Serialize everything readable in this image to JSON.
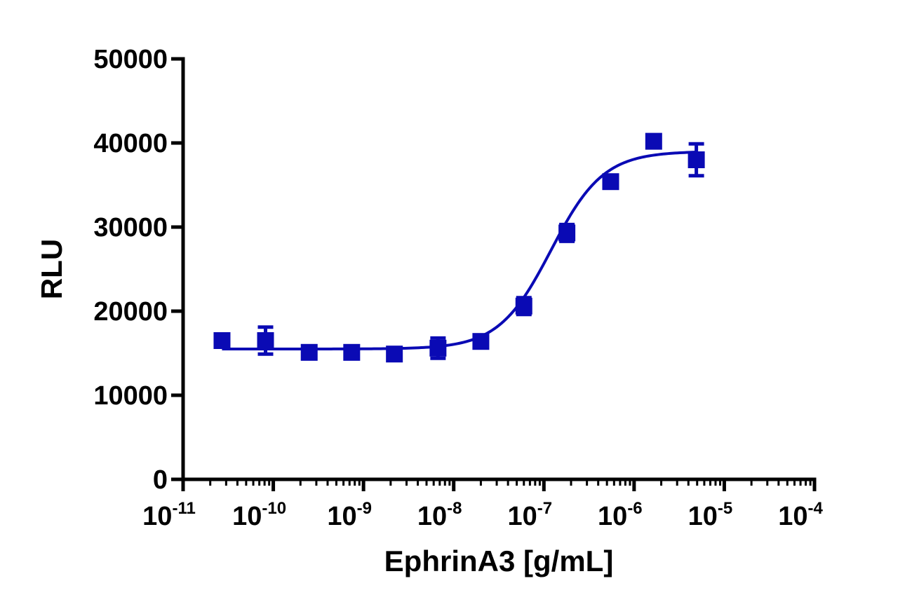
{
  "chart_data": {
    "type": "scatter",
    "title": "",
    "xlabel": "EphrinA3 [g/mL]",
    "ylabel": "RLU",
    "x_scale": "log",
    "xlim": [
      1e-11,
      0.0001
    ],
    "ylim": [
      0,
      50000
    ],
    "y_ticks": [
      {
        "value": 0,
        "label": "0"
      },
      {
        "value": 10000,
        "label": "10000"
      },
      {
        "value": 20000,
        "label": "20000"
      },
      {
        "value": 30000,
        "label": "30000"
      },
      {
        "value": 40000,
        "label": "40000"
      },
      {
        "value": 50000,
        "label": "50000"
      }
    ],
    "x_ticks": [
      {
        "value": 1e-11,
        "base": "10",
        "exp": "-11"
      },
      {
        "value": 1e-10,
        "base": "10",
        "exp": "-10"
      },
      {
        "value": 1e-09,
        "base": "10",
        "exp": "-9"
      },
      {
        "value": 1e-08,
        "base": "10",
        "exp": "-8"
      },
      {
        "value": 1e-07,
        "base": "10",
        "exp": "-7"
      },
      {
        "value": 1e-06,
        "base": "10",
        "exp": "-6"
      },
      {
        "value": 1e-05,
        "base": "10",
        "exp": "-5"
      },
      {
        "value": 0.0001,
        "base": "10",
        "exp": "-4"
      }
    ],
    "grid": false,
    "legend": "none",
    "series": [
      {
        "color": "#0a0ab4",
        "marker": "square",
        "points": [
          {
            "x": 2.7e-11,
            "y": 16500,
            "err": 0
          },
          {
            "x": 8.2e-11,
            "y": 16500,
            "err": 1600
          },
          {
            "x": 2.5e-10,
            "y": 15100,
            "err": 0
          },
          {
            "x": 7.4e-10,
            "y": 15100,
            "err": 0
          },
          {
            "x": 2.2e-09,
            "y": 14900,
            "err": 0
          },
          {
            "x": 6.7e-09,
            "y": 15600,
            "err": 1200
          },
          {
            "x": 2e-08,
            "y": 16400,
            "err": 0
          },
          {
            "x": 6e-08,
            "y": 20600,
            "err": 1000
          },
          {
            "x": 1.8e-07,
            "y": 29300,
            "err": 1000
          },
          {
            "x": 5.5e-07,
            "y": 35400,
            "err": 0
          },
          {
            "x": 1.65e-06,
            "y": 40200,
            "err": 0
          },
          {
            "x": 4.9e-06,
            "y": 38000,
            "err": 1900
          }
        ],
        "fit": {
          "model": "4PL",
          "bottom": 15500,
          "top": 39000,
          "ec50": 1.2e-07,
          "hill": 1.5
        }
      }
    ]
  }
}
